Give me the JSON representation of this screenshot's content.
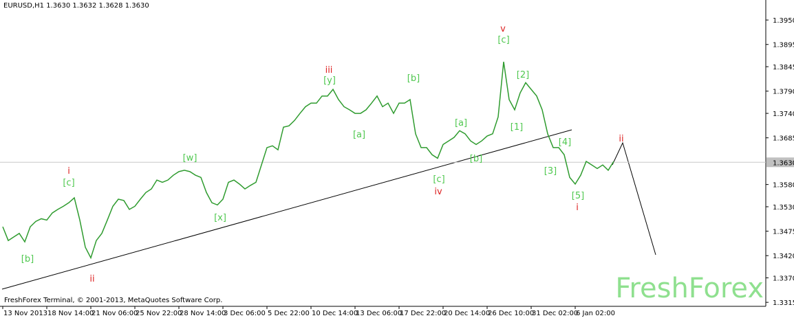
{
  "chart_data": {
    "type": "line",
    "title": "EURUSD,H1  1.3630 1.3632 1.3628 1.3630",
    "footer": "FreshForex Terminal, © 2001-2013, MetaQuotes Software Corp.",
    "watermark": "FreshForex",
    "categories": [
      "13 Nov 2013",
      null,
      null,
      null,
      null,
      null,
      null,
      null,
      "18 Nov 14:00",
      null,
      null,
      null,
      null,
      null,
      null,
      null,
      "21 Nov 06:00",
      null,
      null,
      null,
      null,
      null,
      null,
      null,
      "25 Nov 22:00",
      null,
      null,
      null,
      null,
      null,
      null,
      null,
      "28 Nov 14:00",
      null,
      null,
      null,
      null,
      null,
      null,
      null,
      "3 Dec 06:00",
      null,
      null,
      null,
      null,
      null,
      null,
      null,
      "5 Dec 22:00",
      null,
      null,
      null,
      null,
      null,
      null,
      null,
      "10 Dec 14:00",
      null,
      null,
      null,
      null,
      null,
      null,
      null,
      "13 Dec 06:00",
      null,
      null,
      null,
      null,
      null,
      null,
      null,
      "17 Dec 22:00",
      null,
      null,
      null,
      null,
      null,
      null,
      null,
      "20 Dec 14:00",
      null,
      null,
      null,
      null,
      null,
      null,
      null,
      "26 Dec 10:00",
      null,
      null,
      null,
      null,
      null,
      null,
      null,
      "31 Dec 02:00",
      null,
      null,
      null,
      null,
      null,
      null,
      null,
      "6 Jan 02:00",
      null,
      null,
      null,
      null,
      null,
      null,
      null
    ],
    "series": [
      {
        "name": "EURUSD",
        "color": "#2e9b2e",
        "values": [
          1.3485,
          1.3454,
          1.3462,
          1.347,
          1.3451,
          1.3485,
          1.3497,
          1.3503,
          1.35,
          1.3516,
          1.3524,
          1.3531,
          1.3539,
          1.355,
          1.35,
          1.3439,
          1.3415,
          1.3454,
          1.347,
          1.35,
          1.3531,
          1.3547,
          1.3544,
          1.3524,
          1.3531,
          1.3547,
          1.3562,
          1.357,
          1.359,
          1.3585,
          1.359,
          1.3601,
          1.3609,
          1.3612,
          1.3609,
          1.3601,
          1.3596,
          1.3562,
          1.3539,
          1.3534,
          1.3547,
          1.3585,
          1.359,
          1.3581,
          1.357,
          1.3578,
          1.3585,
          1.3624,
          1.3663,
          1.3667,
          1.3658,
          1.3709,
          1.3712,
          1.3724,
          1.374,
          1.3755,
          1.3763,
          1.3763,
          1.3779,
          1.3779,
          1.3794,
          1.3771,
          1.3755,
          1.3748,
          1.374,
          1.374,
          1.3748,
          1.3763,
          1.3779,
          1.3755,
          1.3763,
          1.374,
          1.3763,
          1.3763,
          1.3771,
          1.3694,
          1.3663,
          1.3663,
          1.3647,
          1.3639,
          1.367,
          1.3678,
          1.3686,
          1.3701,
          1.3694,
          1.3678,
          1.367,
          1.3678,
          1.3689,
          1.3694,
          1.3732,
          1.3856,
          1.3771,
          1.3748,
          1.3786,
          1.3809,
          1.3794,
          1.3779,
          1.3748,
          1.3694,
          1.3663,
          1.3663,
          1.3647,
          1.3596,
          1.3581,
          1.3601,
          1.3632,
          1.3624,
          1.3616,
          1.3624,
          1.3612,
          1.3632
        ]
      }
    ],
    "ylim": [
      1.3306,
      1.3995
    ],
    "yticks": [
      {
        "value": 1.395,
        "label": "1.3950"
      },
      {
        "value": 1.3895,
        "label": "1.3895"
      },
      {
        "value": 1.3845,
        "label": "1.3845"
      },
      {
        "value": 1.379,
        "label": "1.3790"
      },
      {
        "value": 1.374,
        "label": "1.3740"
      },
      {
        "value": 1.3685,
        "label": "1.3685"
      },
      {
        "value": 1.358,
        "label": "1.3580"
      },
      {
        "value": 1.353,
        "label": "1.3530"
      },
      {
        "value": 1.3475,
        "label": "1.3475"
      },
      {
        "value": 1.342,
        "label": "1.3420"
      },
      {
        "value": 1.337,
        "label": "1.3370"
      },
      {
        "value": 1.3315,
        "label": "1.3315"
      }
    ],
    "current_price": {
      "value": 1.363,
      "label": "1.3630"
    },
    "annotations": [
      {
        "text": "[b]",
        "color": "#4fc84f"
      },
      {
        "text": "i",
        "color": "#d22"
      },
      {
        "text": "[c]",
        "color": "#4fc84f"
      },
      {
        "text": "ii",
        "color": "#d22"
      },
      {
        "text": "[w]",
        "color": "#4fc84f"
      },
      {
        "text": "[x]",
        "color": "#4fc84f"
      },
      {
        "text": "iii",
        "color": "#d22"
      },
      {
        "text": "[y]",
        "color": "#4fc84f"
      },
      {
        "text": "[a]",
        "color": "#4fc84f"
      },
      {
        "text": "[b]",
        "color": "#4fc84f"
      },
      {
        "text": "[c]",
        "color": "#4fc84f"
      },
      {
        "text": "iv",
        "color": "#d22"
      },
      {
        "text": "[a]",
        "color": "#4fc84f"
      },
      {
        "text": "[b]",
        "color": "#4fc84f"
      },
      {
        "text": "v",
        "color": "#d22"
      },
      {
        "text": "[c]",
        "color": "#4fc84f"
      },
      {
        "text": "[2]",
        "color": "#4fc84f"
      },
      {
        "text": "[1]",
        "color": "#4fc84f"
      },
      {
        "text": "[4]",
        "color": "#4fc84f"
      },
      {
        "text": "[3]",
        "color": "#4fc84f"
      },
      {
        "text": "[5]",
        "color": "#4fc84f"
      },
      {
        "text": "i",
        "color": "#d22"
      },
      {
        "text": "ii",
        "color": "#d22"
      }
    ]
  }
}
